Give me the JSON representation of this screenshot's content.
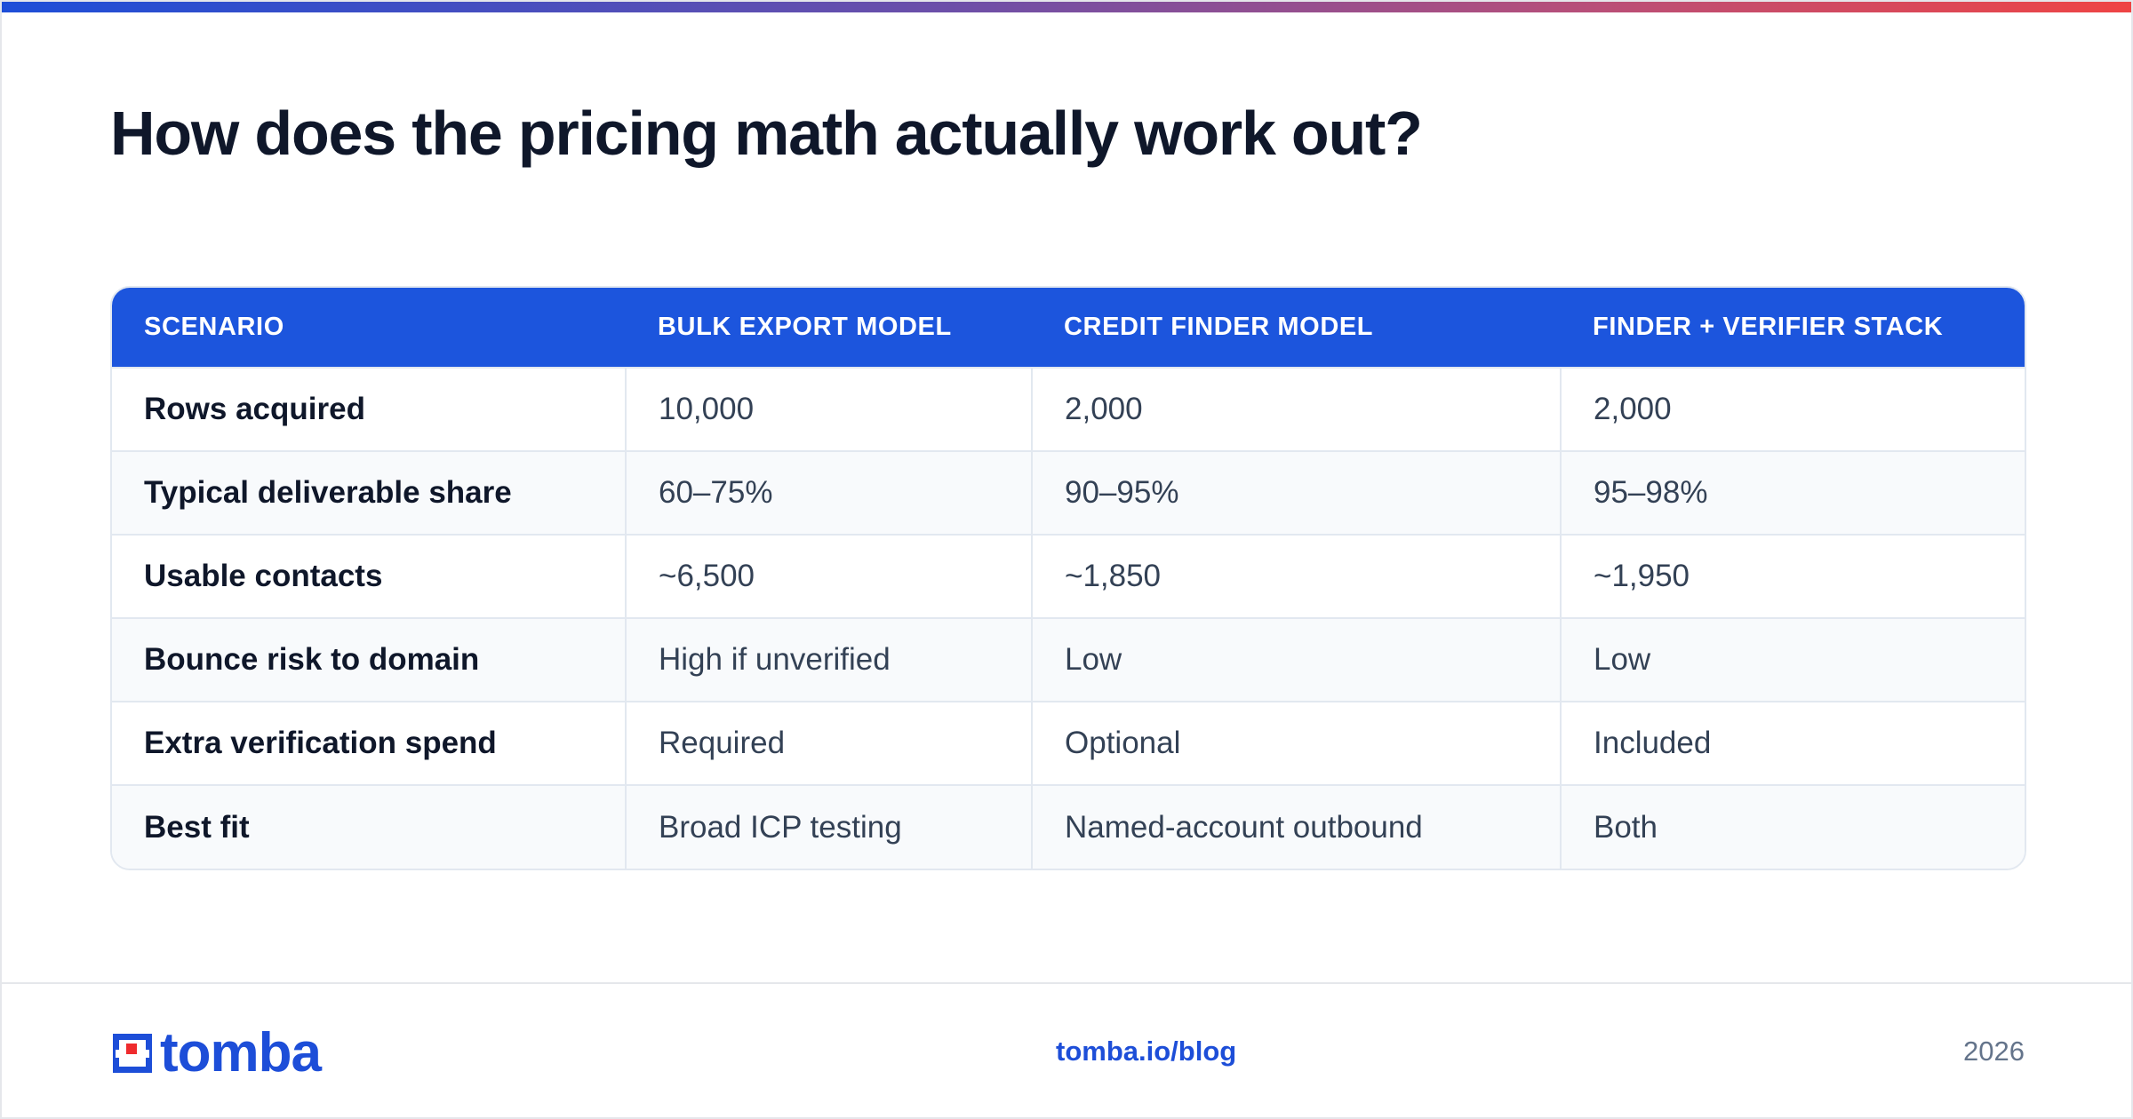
{
  "title": "How does the pricing math actually work out?",
  "table": {
    "headers": [
      "SCENARIO",
      "BULK EXPORT MODEL",
      "CREDIT FINDER MODEL",
      "FINDER + VERIFIER STACK"
    ],
    "rows": [
      [
        "Rows acquired",
        "10,000",
        "2,000",
        "2,000"
      ],
      [
        "Typical deliverable share",
        "60–75%",
        "90–95%",
        "95–98%"
      ],
      [
        "Usable contacts",
        "~6,500",
        "~1,850",
        "~1,950"
      ],
      [
        "Bounce risk to domain",
        "High if unverified",
        "Low",
        "Low"
      ],
      [
        "Extra verification spend",
        "Required",
        "Optional",
        "Included"
      ],
      [
        "Best fit",
        "Broad ICP testing",
        "Named-account outbound",
        "Both"
      ]
    ]
  },
  "footer": {
    "logo_text": "tomba",
    "link": "tomba.io/blog",
    "year": "2026"
  },
  "colors": {
    "accent": "#1c55dd",
    "logo_red": "#ef2b2d",
    "title": "#0f172a"
  }
}
